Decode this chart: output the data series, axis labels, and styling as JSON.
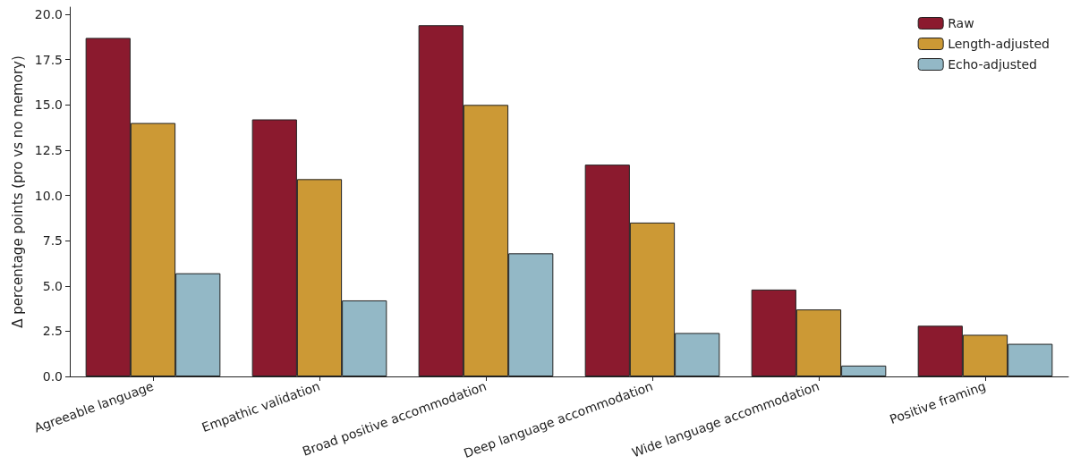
{
  "chart_data": {
    "type": "bar",
    "ylabel": "Δ percentage points (pro vs no memory)",
    "categories": [
      "Agreeable language",
      "Empathic validation",
      "Broad positive accommodation",
      "Deep language accommodation",
      "Wide language accommodation",
      "Positive framing"
    ],
    "series": [
      {
        "name": "Raw",
        "color": "#8b1a2e",
        "values": [
          18.7,
          14.2,
          19.4,
          11.7,
          4.8,
          2.8
        ]
      },
      {
        "name": "Length-adjusted",
        "color": "#cc9935",
        "values": [
          14.0,
          10.9,
          15.0,
          8.5,
          3.7,
          2.3
        ]
      },
      {
        "name": "Echo-adjusted",
        "color": "#93b8c6",
        "values": [
          5.7,
          4.2,
          6.8,
          2.4,
          0.6,
          1.8
        ]
      }
    ],
    "ylim": [
      0,
      20.4
    ],
    "yticks": [
      {
        "value": 0,
        "label": "0.0"
      },
      {
        "value": 2.5,
        "label": "2.5"
      },
      {
        "value": 5,
        "label": "5.0"
      },
      {
        "value": 7.5,
        "label": "7.5"
      },
      {
        "value": 10,
        "label": "10.0"
      },
      {
        "value": 12.5,
        "label": "12.5"
      },
      {
        "value": 15,
        "label": "15.0"
      },
      {
        "value": 17.5,
        "label": "17.5"
      },
      {
        "value": 20,
        "label": "20.0"
      }
    ],
    "grid": false,
    "legend": "top right"
  }
}
